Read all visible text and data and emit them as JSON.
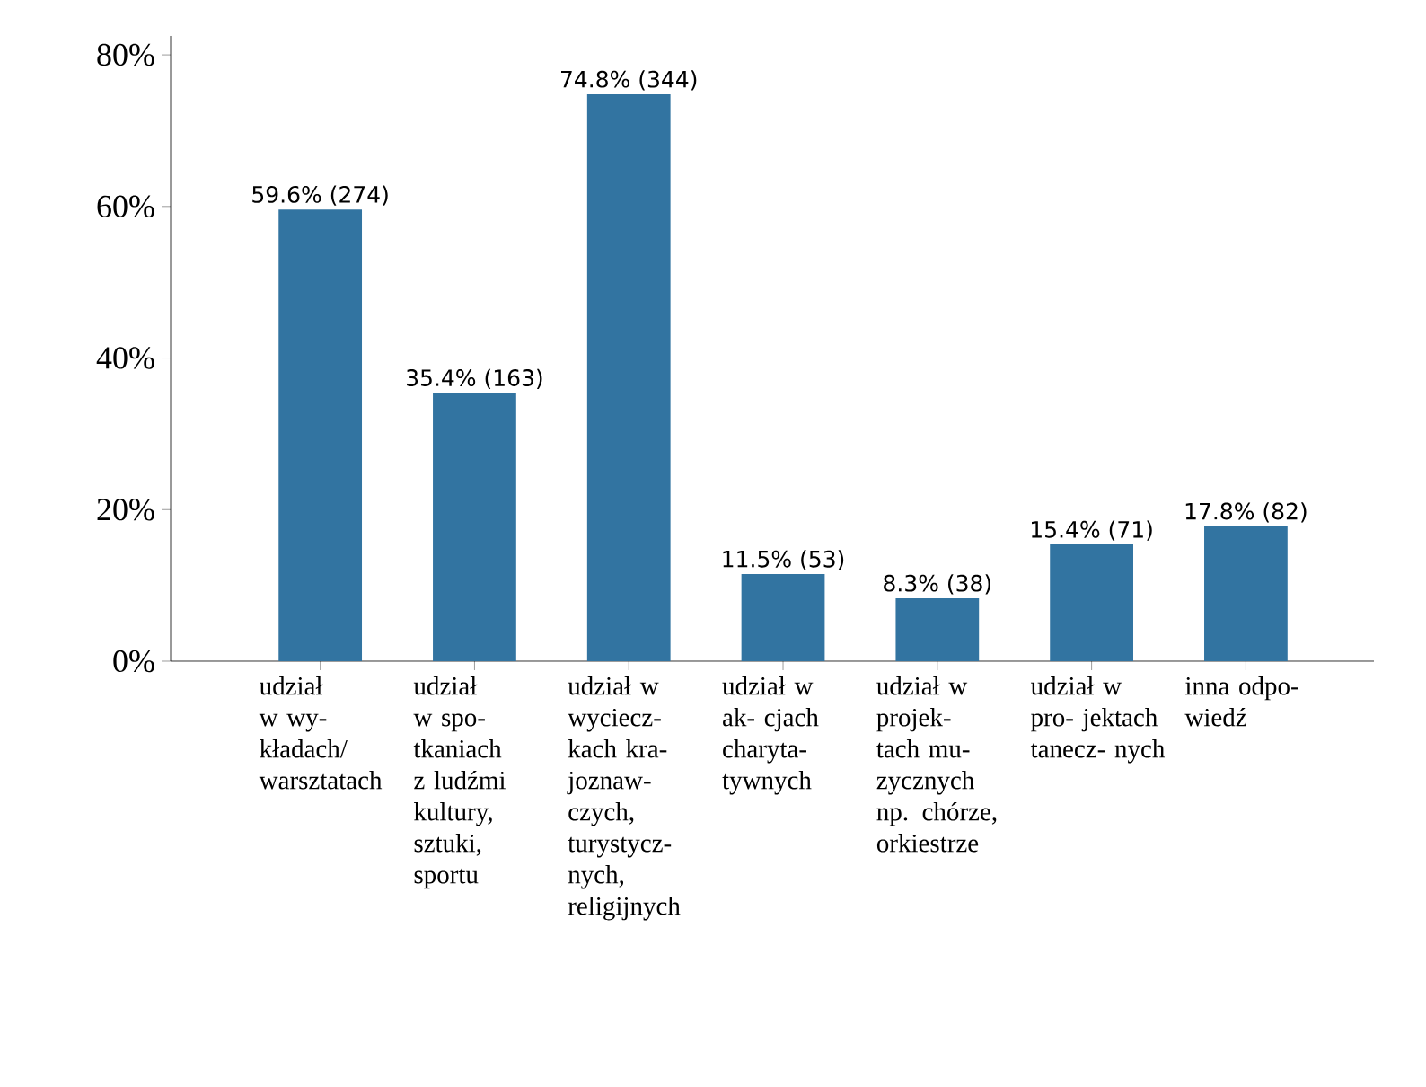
{
  "chart_data": {
    "type": "bar",
    "categories": [
      "udział w wy- kładach/ warsztatach",
      "udział w spo- tkaniach z ludźmi kultury, sztuki, sportu",
      "udział w wyciecz- kach kra- joznaw- czych, turystycz- nych, religijnych",
      "udział w ak- cjach charyta- tywnych",
      "udział w projek- tach mu- zycznych np. chórze, orkiestrze",
      "udział w pro- jektach tanecz- nych",
      "inna odpo- wiedź"
    ],
    "values": [
      59.6,
      35.4,
      74.8,
      11.5,
      8.3,
      15.4,
      17.8
    ],
    "value_labels": [
      "59.6% (274)",
      "35.4% (163)",
      "74.8% (344)",
      "11.5% (53)",
      "8.3% (38)",
      "15.4% (71)",
      "17.8% (82)"
    ],
    "color": "#3274a1",
    "ylim": [
      0,
      82.5
    ],
    "yticks": [
      {
        "value": 0,
        "label": "0%"
      },
      {
        "value": 20,
        "label": "20%"
      },
      {
        "value": 40,
        "label": "40%"
      },
      {
        "value": 60,
        "label": "60%"
      },
      {
        "value": 80,
        "label": "80%"
      }
    ]
  }
}
